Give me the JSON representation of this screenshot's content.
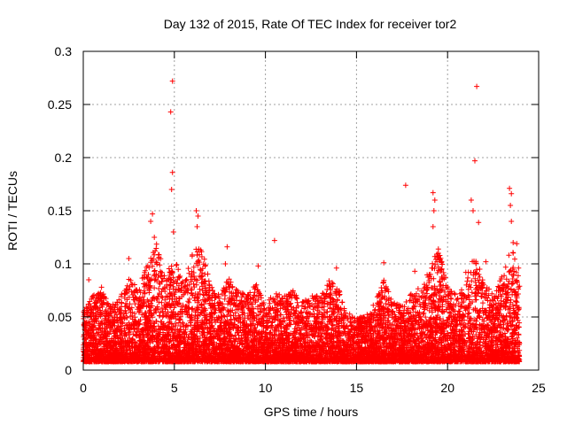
{
  "chart_data": {
    "type": "scatter",
    "title": "Day 132 of 2015, Rate Of TEC Index for receiver tor2",
    "xlabel": "GPS time / hours",
    "ylabel": "ROTI / TECUs",
    "xlim": [
      0,
      25
    ],
    "ylim": [
      0,
      0.3
    ],
    "x_ticks": [
      0,
      5,
      10,
      15,
      20,
      25
    ],
    "x_tick_labels": [
      "0",
      "5",
      "10",
      "15",
      "20",
      "25"
    ],
    "y_ticks": [
      0,
      0.05,
      0.1,
      0.15,
      0.2,
      0.25,
      0.3
    ],
    "y_tick_labels": [
      "0",
      "0.05",
      "0.1",
      "0.15",
      "0.2",
      "0.25",
      "0.3"
    ],
    "grid": true,
    "marker": "plus",
    "marker_color": "#ff0000",
    "series": [
      {
        "points": [
          [
            4.9,
            0.272
          ],
          [
            4.8,
            0.243
          ],
          [
            4.9,
            0.186
          ],
          [
            4.85,
            0.17
          ],
          [
            4.95,
            0.13
          ],
          [
            21.6,
            0.267
          ],
          [
            21.5,
            0.197
          ],
          [
            21.7,
            0.139
          ],
          [
            21.3,
            0.16
          ],
          [
            21.4,
            0.15
          ],
          [
            17.7,
            0.174
          ],
          [
            19.2,
            0.167
          ],
          [
            19.3,
            0.16
          ],
          [
            19.25,
            0.15
          ],
          [
            19.2,
            0.135
          ],
          [
            23.4,
            0.171
          ],
          [
            23.5,
            0.166
          ],
          [
            23.45,
            0.155
          ],
          [
            23.5,
            0.14
          ],
          [
            23.6,
            0.12
          ],
          [
            3.8,
            0.147
          ],
          [
            3.7,
            0.14
          ],
          [
            3.9,
            0.125
          ],
          [
            6.2,
            0.15
          ],
          [
            6.3,
            0.145
          ],
          [
            6.25,
            0.135
          ],
          [
            10.5,
            0.122
          ],
          [
            7.9,
            0.116
          ],
          [
            7.8,
            0.1
          ],
          [
            9.6,
            0.098
          ],
          [
            2.5,
            0.105
          ],
          [
            16.5,
            0.101
          ],
          [
            13.9,
            0.096
          ],
          [
            18.2,
            0.093
          ],
          [
            22.1,
            0.102
          ],
          [
            23.8,
            0.119
          ],
          [
            19.5,
            0.11
          ],
          [
            21.0,
            0.092
          ],
          [
            0.3,
            0.085
          ],
          [
            1.0,
            0.078
          ]
        ]
      }
    ],
    "activity_envelope": [
      [
        0.0,
        0.055
      ],
      [
        0.5,
        0.07
      ],
      [
        1.0,
        0.075
      ],
      [
        1.5,
        0.06
      ],
      [
        2.0,
        0.068
      ],
      [
        2.5,
        0.09
      ],
      [
        3.0,
        0.075
      ],
      [
        3.5,
        0.1
      ],
      [
        4.0,
        0.12
      ],
      [
        4.5,
        0.09
      ],
      [
        5.0,
        0.105
      ],
      [
        5.5,
        0.085
      ],
      [
        6.0,
        0.11
      ],
      [
        6.5,
        0.12
      ],
      [
        7.0,
        0.08
      ],
      [
        7.5,
        0.07
      ],
      [
        8.0,
        0.09
      ],
      [
        8.5,
        0.075
      ],
      [
        9.0,
        0.07
      ],
      [
        9.5,
        0.082
      ],
      [
        10.0,
        0.06
      ],
      [
        10.5,
        0.075
      ],
      [
        11.0,
        0.07
      ],
      [
        11.5,
        0.075
      ],
      [
        12.0,
        0.065
      ],
      [
        12.5,
        0.07
      ],
      [
        13.0,
        0.072
      ],
      [
        13.5,
        0.085
      ],
      [
        14.0,
        0.078
      ],
      [
        14.5,
        0.055
      ],
      [
        15.0,
        0.05
      ],
      [
        15.5,
        0.05
      ],
      [
        16.0,
        0.065
      ],
      [
        16.5,
        0.085
      ],
      [
        17.0,
        0.065
      ],
      [
        17.5,
        0.06
      ],
      [
        18.0,
        0.072
      ],
      [
        18.5,
        0.08
      ],
      [
        19.0,
        0.095
      ],
      [
        19.5,
        0.115
      ],
      [
        20.0,
        0.08
      ],
      [
        20.5,
        0.07
      ],
      [
        21.0,
        0.085
      ],
      [
        21.5,
        0.11
      ],
      [
        22.0,
        0.085
      ],
      [
        22.5,
        0.07
      ],
      [
        23.0,
        0.09
      ],
      [
        23.5,
        0.115
      ],
      [
        23.9,
        0.1
      ]
    ],
    "x_extent": [
      0.0,
      23.95
    ]
  }
}
